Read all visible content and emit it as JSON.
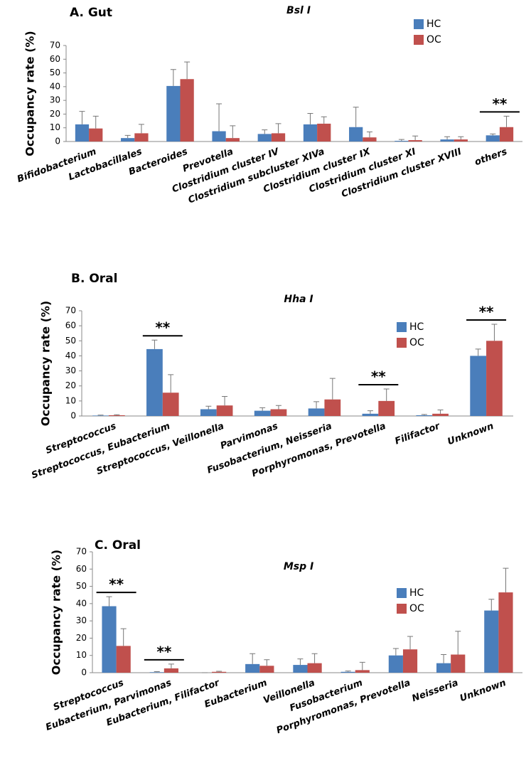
{
  "chart_data": [
    {
      "type": "bar",
      "panel": "A.  Gut",
      "title": "Bsl I",
      "y_label": "Occupancy rate (%)",
      "categories": [
        "Bifidobacterium",
        "Lactobacillales",
        "Bacteroides",
        "Prevotella",
        "Clostridium cluster IV",
        "Clostridium subcluster XIVa",
        "Clostridium cluster IX",
        "Clostridium cluster XI",
        "Clostridium cluster XVIII",
        "others"
      ],
      "series": [
        {
          "name": "HC",
          "color": "#4a7ebb",
          "values": [
            12.5,
            2.5,
            40.5,
            7.5,
            5.5,
            12.5,
            10.5,
            0.5,
            1.5,
            4.5
          ],
          "errors": [
            9.5,
            2,
            12,
            20,
            3,
            8,
            14.5,
            1,
            2,
            1
          ]
        },
        {
          "name": "OC",
          "color": "#c0504d",
          "values": [
            9.5,
            6,
            45.5,
            2.5,
            6,
            13,
            3,
            1,
            1.5,
            10.5
          ],
          "errors": [
            9,
            6.5,
            12.5,
            9,
            7,
            5,
            4,
            3,
            2,
            8
          ]
        }
      ],
      "annotations": [
        {
          "text": "**",
          "category": "others"
        }
      ],
      "ylim": [
        0,
        70
      ],
      "yticks": [
        0,
        10,
        20,
        30,
        40,
        50,
        60,
        70
      ]
    },
    {
      "type": "bar",
      "panel": "B.  Oral",
      "title": "Hha I",
      "y_label": "Occupancy rate (%)",
      "categories": [
        "Streptococcus",
        "Streptococcus, Eubacterium",
        "Streptococcus, Veillonella",
        "Parvimonas",
        "Fusobacterium, Neisseria",
        "Porphyromonas, Prevotella",
        "Filifactor",
        "Unknown"
      ],
      "series": [
        {
          "name": "HC",
          "color": "#4a7ebb",
          "values": [
            0.3,
            44.5,
            4.5,
            3.5,
            5,
            1.5,
            0.5,
            40
          ],
          "errors": [
            0.3,
            6,
            2,
            2,
            4.5,
            2,
            0.5,
            4.5
          ]
        },
        {
          "name": "OC",
          "color": "#c0504d",
          "values": [
            0.5,
            15.5,
            7,
            4.5,
            11,
            10,
            1.5,
            50
          ],
          "errors": [
            0.3,
            12,
            6,
            2.5,
            14,
            8,
            2.5,
            11
          ]
        }
      ],
      "annotations": [
        {
          "text": "**",
          "category": "Streptococcus, Eubacterium"
        },
        {
          "text": "**",
          "category": "Porphyromonas, Prevotella"
        },
        {
          "text": "**",
          "category": "Unknown"
        }
      ],
      "ylim": [
        0,
        70
      ],
      "yticks": [
        0,
        10,
        20,
        30,
        40,
        50,
        60,
        70
      ]
    },
    {
      "type": "bar",
      "panel": "C.  Oral",
      "title": "Msp I",
      "y_label": "Occupancy rate (%)",
      "categories": [
        "Streptococcus",
        "Eubacterium, Parvimonas",
        "Eubacterium, Filifactor",
        "Eubacterium",
        "Veillonella",
        "Fusobacterium",
        "Porphyromonas, Prevotella",
        "Neisseria",
        "Unknown"
      ],
      "series": [
        {
          "name": "HC",
          "color": "#4a7ebb",
          "values": [
            38.5,
            0.3,
            0,
            5,
            4.5,
            0.5,
            10,
            5.5,
            36
          ],
          "errors": [
            5.5,
            0.3,
            0,
            6,
            3.5,
            0.5,
            4,
            5,
            6.5
          ]
        },
        {
          "name": "OC",
          "color": "#c0504d",
          "values": [
            15.5,
            2.5,
            0.5,
            4,
            5.5,
            1.5,
            13.5,
            10.5,
            46.5
          ],
          "errors": [
            10,
            2.5,
            0.3,
            3.5,
            5.5,
            4.5,
            7.5,
            13.5,
            14
          ]
        }
      ],
      "annotations": [
        {
          "text": "**",
          "category": "Streptococcus"
        },
        {
          "text": "**",
          "category": "Eubacterium, Parvimonas"
        }
      ],
      "ylim": [
        0,
        70
      ],
      "yticks": [
        0,
        10,
        20,
        30,
        40,
        50,
        60,
        70
      ]
    }
  ]
}
